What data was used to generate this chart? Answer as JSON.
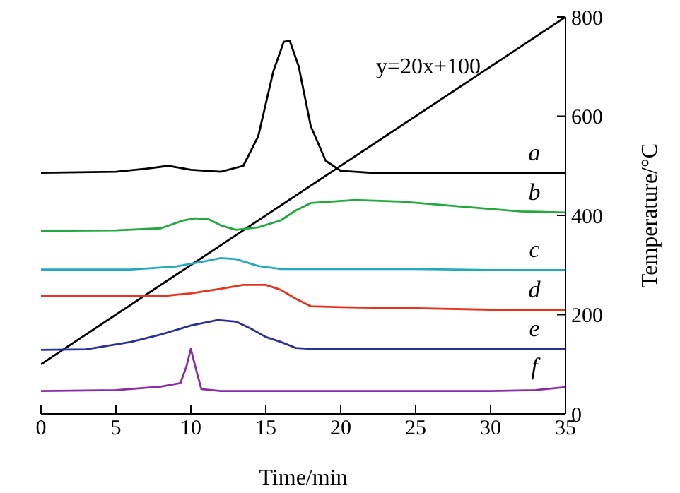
{
  "chart_data": {
    "type": "line",
    "xlabel": "Time/min",
    "y2label": "Temperature/°C",
    "xlim": [
      0,
      35
    ],
    "xticks": [
      0,
      5,
      10,
      15,
      20,
      25,
      30,
      35
    ],
    "y2lim": [
      0,
      800
    ],
    "y2ticks": [
      0,
      200,
      400,
      600,
      800
    ],
    "marker": "none",
    "line_style": "solid",
    "series": [
      {
        "name": "y=20x+100",
        "color": "#000000",
        "axis": "y2",
        "x": [
          0,
          35
        ],
        "values": [
          100,
          800
        ]
      },
      {
        "name": "a",
        "color": "#000000",
        "axis": "y2",
        "x": [
          0,
          5,
          7,
          8.5,
          10,
          12,
          13.5,
          14.5,
          15.5,
          16.2,
          16.6,
          17.2,
          18,
          19,
          20,
          22,
          35
        ],
        "values": [
          486,
          488,
          494,
          500,
          492,
          488,
          500,
          560,
          690,
          750,
          752,
          700,
          580,
          510,
          490,
          486,
          486
        ]
      },
      {
        "name": "b",
        "color": "#22a83c",
        "axis": "y2",
        "x": [
          0,
          5,
          8,
          9.5,
          10.3,
          11.2,
          12,
          13,
          14.5,
          16,
          17,
          18,
          21,
          24,
          28,
          32,
          35
        ],
        "values": [
          369,
          370,
          374,
          390,
          394,
          392,
          380,
          371,
          376,
          390,
          410,
          425,
          431,
          428,
          418,
          408,
          406
        ]
      },
      {
        "name": "c",
        "color": "#22aabb",
        "axis": "y2",
        "x": [
          0,
          6,
          9,
          11,
          12,
          13,
          14.5,
          16,
          20,
          25,
          30,
          35
        ],
        "values": [
          291,
          291,
          297,
          308,
          314,
          312,
          298,
          292,
          292,
          292,
          290,
          290
        ]
      },
      {
        "name": "d",
        "color": "#e8321e",
        "axis": "y2",
        "x": [
          0,
          6,
          8,
          10,
          12,
          13.5,
          15,
          16,
          17,
          18,
          20,
          25,
          30,
          35
        ],
        "values": [
          237,
          237,
          237,
          243,
          252,
          260,
          260,
          250,
          232,
          217,
          215,
          213,
          210,
          209
        ]
      },
      {
        "name": "e",
        "color": "#2b2f9a",
        "axis": "y2",
        "x": [
          0,
          3,
          6,
          8,
          10,
          11.8,
          13,
          14,
          15,
          16,
          17,
          18,
          25,
          35
        ],
        "values": [
          129,
          130,
          145,
          160,
          178,
          189,
          186,
          172,
          155,
          145,
          133,
          131,
          131,
          131
        ]
      },
      {
        "name": "f",
        "color": "#8a2ca8",
        "axis": "y2",
        "x": [
          0,
          5,
          8,
          9.3,
          9.7,
          10,
          10.3,
          10.7,
          12,
          20,
          30,
          33,
          35
        ],
        "values": [
          46,
          48,
          55,
          62,
          95,
          131,
          95,
          50,
          46,
          46,
          46,
          48,
          54
        ]
      }
    ]
  }
}
